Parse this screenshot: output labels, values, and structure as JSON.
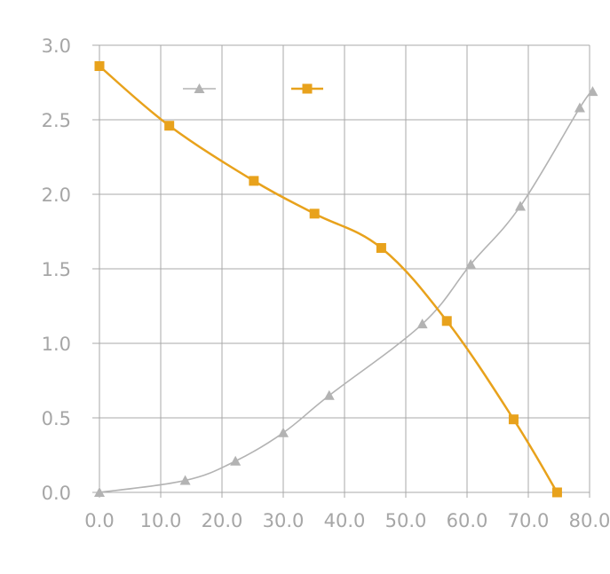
{
  "chart_data": {
    "type": "line",
    "title": "",
    "xlabel": "",
    "ylabel": "",
    "xlim": [
      0,
      80
    ],
    "ylim": [
      0,
      3
    ],
    "x_ticks": [
      "0.0",
      "10.0",
      "20.0",
      "30.0",
      "40.0",
      "50.0",
      "60.0",
      "70.0",
      "80.0"
    ],
    "y_ticks": [
      "0.0",
      "0.5",
      "1.0",
      "1.5",
      "2.0",
      "2.5",
      "3.0"
    ],
    "grid": true,
    "legend": "top-center",
    "series": [
      {
        "marker": "triangle",
        "color": "#b3b3b3",
        "smooth": true,
        "points": [
          {
            "x": 0.0,
            "y": 0.0
          },
          {
            "x": 14.0,
            "y": 0.08
          },
          {
            "x": 22.2,
            "y": 0.21
          },
          {
            "x": 30.0,
            "y": 0.4
          },
          {
            "x": 37.5,
            "y": 0.65
          },
          {
            "x": 52.7,
            "y": 1.13
          },
          {
            "x": 60.6,
            "y": 1.53
          },
          {
            "x": 68.7,
            "y": 1.92
          },
          {
            "x": 78.4,
            "y": 2.58
          },
          {
            "x": 80.5,
            "y": 2.69
          }
        ]
      },
      {
        "marker": "square",
        "color": "#e8a21c",
        "smooth": true,
        "points": [
          {
            "x": 0.0,
            "y": 2.86
          },
          {
            "x": 11.4,
            "y": 2.46
          },
          {
            "x": 25.2,
            "y": 2.09
          },
          {
            "x": 35.1,
            "y": 1.87
          },
          {
            "x": 46.0,
            "y": 1.64
          },
          {
            "x": 56.7,
            "y": 1.15
          },
          {
            "x": 67.6,
            "y": 0.49
          },
          {
            "x": 74.7,
            "y": 0.0
          }
        ]
      }
    ]
  }
}
